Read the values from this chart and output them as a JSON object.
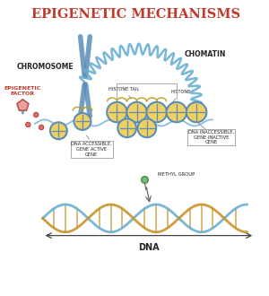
{
  "title": "EPIGENETIC MECHANISMS",
  "title_color": "#c0392b",
  "title_fontsize": 10.5,
  "bg_color": "#ffffff",
  "labels": {
    "chromosome": "CHROMOSOME",
    "chomatin": "CHOMATIN",
    "epigenetic_factor": "EPIGENETIC\nFACTOR",
    "histone_tail": "HISTONE TAIL",
    "histone": "HISTONE",
    "dna_accessible": "DNA ACCESSIBLE,\nGENE ACTIVE\nGENE",
    "dna_inaccessible": "DNA INACCESSIBLE,\nGENE INACTIVE\nGENE",
    "methyl_group": "METHYL GROUP",
    "dna": "DNA"
  },
  "colors": {
    "chromosome": "#5b8db8",
    "chromatin_coil": "#6aafd4",
    "histone_fill": "#f0d060",
    "histone_outline": "#5b8db8",
    "dna_strand1": "#6aafd4",
    "dna_strand2": "#c8922a",
    "dna_rungs": "#c8922a",
    "label_color": "#222222",
    "red_label": "#c0392b",
    "methyl": "#7ab87a",
    "small_ball": "#e07070",
    "epigenetic_fill": "#e8a0a0",
    "epigenetic_edge": "#c05050",
    "tail_color": "#b8a020",
    "connector": "#888888"
  }
}
